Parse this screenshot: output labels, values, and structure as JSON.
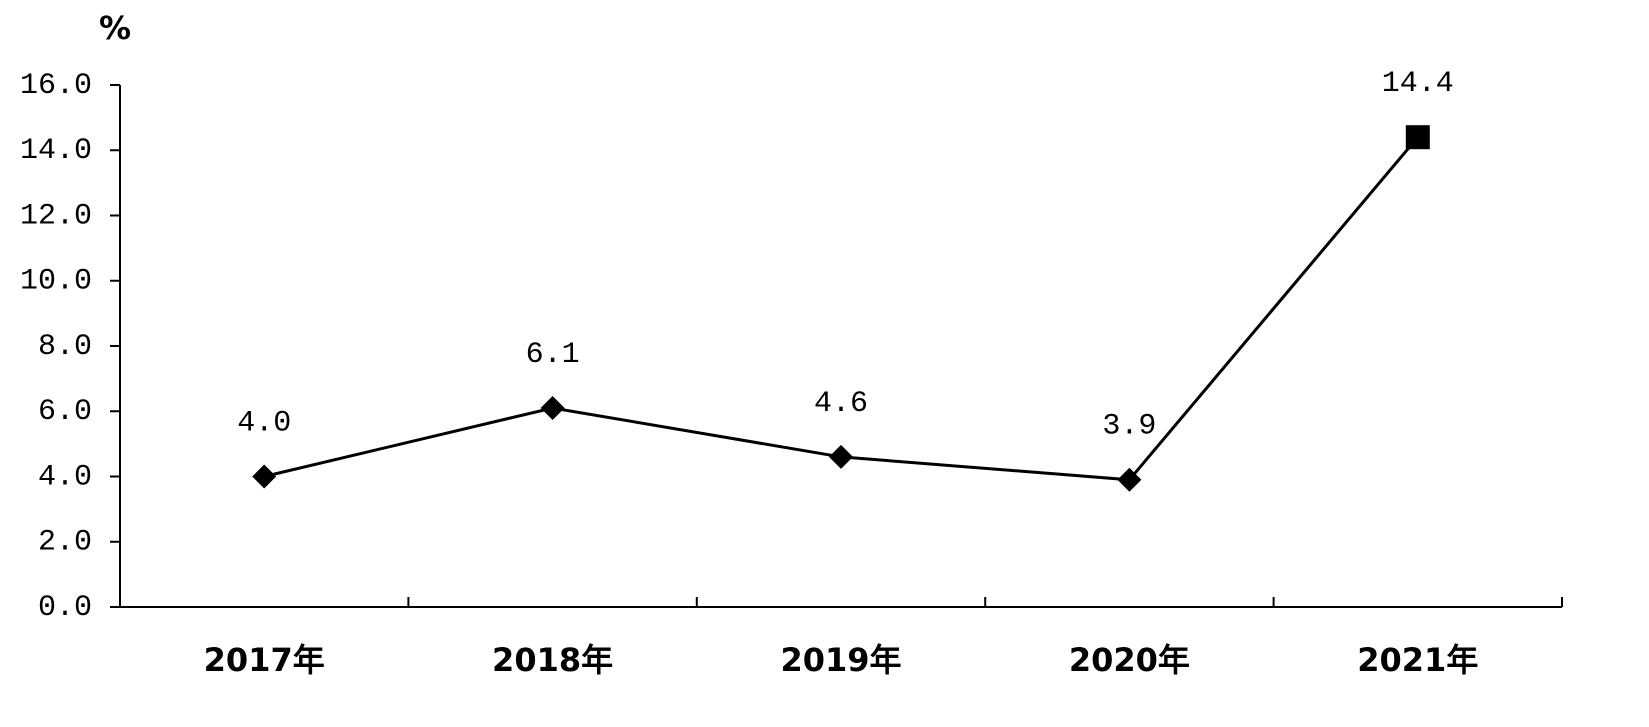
{
  "chart_data": {
    "type": "line",
    "y_unit_label": "%",
    "categories": [
      "2017年",
      "2018年",
      "2019年",
      "2020年",
      "2021年"
    ],
    "series": [
      {
        "color": "#000000",
        "values": [
          4.0,
          6.1,
          4.6,
          3.9,
          14.4
        ],
        "value_labels": [
          "4.0",
          "6.1",
          "4.6",
          "3.9",
          "14.4"
        ],
        "markers": [
          "diamond",
          "diamond",
          "diamond",
          "diamond",
          "square"
        ]
      }
    ],
    "ylim": [
      0,
      16
    ],
    "yticks": [
      {
        "value": 0,
        "label": "0.0"
      },
      {
        "value": 2,
        "label": "2.0"
      },
      {
        "value": 4,
        "label": "4.0"
      },
      {
        "value": 6,
        "label": "6.0"
      },
      {
        "value": 8,
        "label": "8.0"
      },
      {
        "value": 10,
        "label": "10.0"
      },
      {
        "value": 12,
        "label": "12.0"
      },
      {
        "value": 14,
        "label": "14.0"
      },
      {
        "value": 16,
        "label": "16.0"
      }
    ],
    "grid": false
  }
}
